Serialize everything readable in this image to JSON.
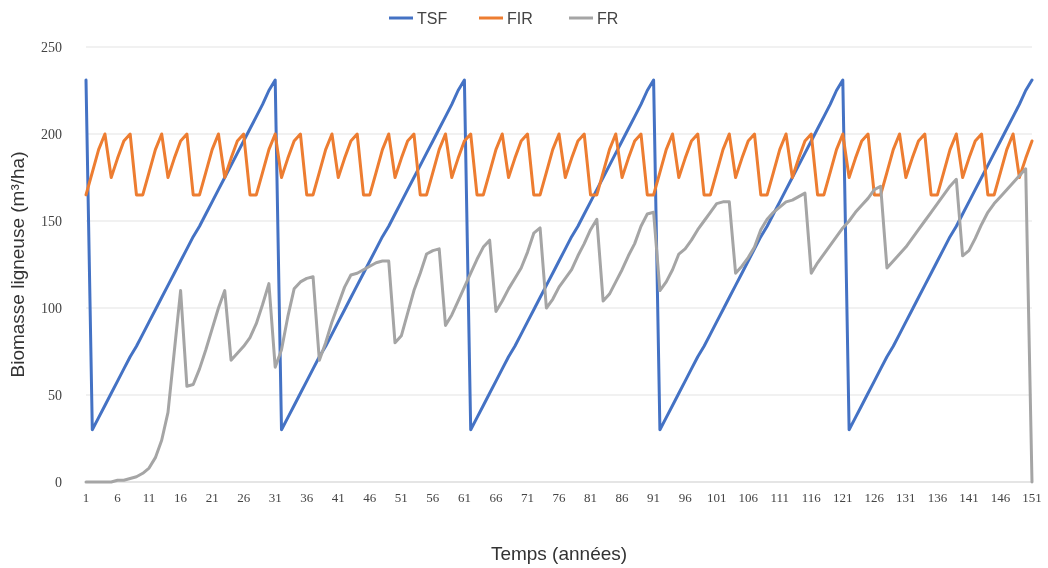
{
  "chart_data": {
    "type": "line",
    "xlabel": "Temps (années)",
    "ylabel": "Biomasse ligneuse (m³/ha)",
    "ylim": [
      0,
      250
    ],
    "yticks": [
      0,
      50,
      100,
      150,
      200,
      250
    ],
    "grid": "y",
    "legend": "top",
    "x": [
      1,
      2,
      3,
      4,
      5,
      6,
      7,
      8,
      9,
      10,
      11,
      12,
      13,
      14,
      15,
      16,
      17,
      18,
      19,
      20,
      21,
      22,
      23,
      24,
      25,
      26,
      27,
      28,
      29,
      30,
      31,
      32,
      33,
      34,
      35,
      36,
      37,
      38,
      39,
      40,
      41,
      42,
      43,
      44,
      45,
      46,
      47,
      48,
      49,
      50,
      51,
      52,
      53,
      54,
      55,
      56,
      57,
      58,
      59,
      60,
      61,
      62,
      63,
      64,
      65,
      66,
      67,
      68,
      69,
      70,
      71,
      72,
      73,
      74,
      75,
      76,
      77,
      78,
      79,
      80,
      81,
      82,
      83,
      84,
      85,
      86,
      87,
      88,
      89,
      90,
      91,
      92,
      93,
      94,
      95,
      96,
      97,
      98,
      99,
      100,
      101,
      102,
      103,
      104,
      105,
      106,
      107,
      108,
      109,
      110,
      111,
      112,
      113,
      114,
      115,
      116,
      117,
      118,
      119,
      120,
      121,
      122,
      123,
      124,
      125,
      126,
      127,
      128,
      129,
      130,
      131,
      132,
      133,
      134,
      135,
      136,
      137,
      138,
      139,
      140,
      141,
      142,
      143,
      144,
      145,
      146,
      147,
      148,
      149,
      150,
      151
    ],
    "xlim": [
      1,
      151
    ],
    "xticks": [
      1,
      6,
      11,
      16,
      21,
      26,
      31,
      36,
      41,
      46,
      51,
      56,
      61,
      66,
      71,
      76,
      81,
      86,
      91,
      96,
      101,
      106,
      111,
      116,
      121,
      126,
      131,
      136,
      141,
      146,
      151
    ],
    "series": [
      {
        "name": "TSF",
        "color": "#4472c4",
        "values": [
          231,
          30,
          37,
          44,
          51,
          58,
          65,
          72,
          78,
          85,
          92,
          99,
          106,
          113,
          120,
          127,
          134,
          141,
          147,
          154,
          161,
          168,
          175,
          182,
          189,
          196,
          203,
          210,
          217,
          225,
          231,
          30,
          37,
          44,
          51,
          58,
          65,
          72,
          78,
          85,
          92,
          99,
          106,
          113,
          120,
          127,
          134,
          141,
          147,
          154,
          161,
          168,
          175,
          182,
          189,
          196,
          203,
          210,
          217,
          225,
          231,
          30,
          37,
          44,
          51,
          58,
          65,
          72,
          78,
          85,
          92,
          99,
          106,
          113,
          120,
          127,
          134,
          141,
          147,
          154,
          161,
          168,
          175,
          182,
          189,
          196,
          203,
          210,
          217,
          225,
          231,
          30,
          37,
          44,
          51,
          58,
          65,
          72,
          78,
          85,
          92,
          99,
          106,
          113,
          120,
          127,
          134,
          141,
          147,
          154,
          161,
          168,
          175,
          182,
          189,
          196,
          203,
          210,
          217,
          225,
          231,
          30,
          37,
          44,
          51,
          58,
          65,
          72,
          78,
          85,
          92,
          99,
          106,
          113,
          120,
          127,
          134,
          141,
          147,
          154,
          161,
          168,
          175,
          182,
          189,
          196,
          203,
          210,
          217,
          225,
          231
        ]
      },
      {
        "name": "FIR",
        "color": "#ed7d31",
        "values": [
          165,
          178,
          191,
          200,
          175,
          186,
          196,
          200,
          165,
          165,
          178,
          191,
          200,
          175,
          186,
          196,
          200,
          165,
          165,
          178,
          191,
          200,
          175,
          186,
          196,
          200,
          165,
          165,
          178,
          191,
          200,
          175,
          186,
          196,
          200,
          165,
          165,
          178,
          191,
          200,
          175,
          186,
          196,
          200,
          165,
          165,
          178,
          191,
          200,
          175,
          186,
          196,
          200,
          165,
          165,
          178,
          191,
          200,
          175,
          186,
          196,
          200,
          165,
          165,
          178,
          191,
          200,
          175,
          186,
          196,
          200,
          165,
          165,
          178,
          191,
          200,
          175,
          186,
          196,
          200,
          165,
          165,
          178,
          191,
          200,
          175,
          186,
          196,
          200,
          165,
          165,
          178,
          191,
          200,
          175,
          186,
          196,
          200,
          165,
          165,
          178,
          191,
          200,
          175,
          186,
          196,
          200,
          165,
          165,
          178,
          191,
          200,
          175,
          186,
          196,
          200,
          165,
          165,
          178,
          191,
          200,
          175,
          186,
          196,
          200,
          165,
          165,
          178,
          191,
          200,
          175,
          186,
          196,
          200,
          165,
          165,
          178,
          191,
          200,
          175,
          186,
          196,
          200,
          165,
          165,
          178,
          191,
          200,
          175,
          186,
          196
        ]
      },
      {
        "name": "FR",
        "color": "#a5a5a5",
        "values": [
          0,
          0,
          0,
          0,
          0,
          1,
          1,
          2,
          3,
          5,
          8,
          14,
          24,
          40,
          75,
          110,
          55,
          56,
          65,
          76,
          88,
          100,
          110,
          70,
          74,
          78,
          83,
          91,
          102,
          114,
          66,
          76,
          95,
          111,
          115,
          117,
          118,
          70,
          80,
          92,
          102,
          112,
          119,
          120,
          122,
          124,
          126,
          127,
          127,
          80,
          84,
          97,
          110,
          120,
          131,
          133,
          134,
          90,
          96,
          104,
          112,
          120,
          128,
          135,
          139,
          98,
          104,
          111,
          117,
          123,
          132,
          143,
          146,
          100,
          105,
          112,
          117,
          122,
          130,
          137,
          145,
          151,
          104,
          108,
          115,
          122,
          130,
          137,
          147,
          154,
          155,
          110,
          115,
          122,
          131,
          134,
          139,
          145,
          150,
          155,
          160,
          161,
          161,
          120,
          124,
          129,
          135,
          145,
          151,
          155,
          158,
          161,
          162,
          164,
          166,
          120,
          126,
          131,
          136,
          141,
          146,
          150,
          155,
          159,
          163,
          168,
          170,
          123,
          127,
          131,
          135,
          140,
          145,
          150,
          155,
          160,
          165,
          170,
          174,
          130,
          133,
          140,
          148,
          155,
          160,
          164,
          168,
          172,
          176,
          180,
          0
        ]
      }
    ]
  }
}
